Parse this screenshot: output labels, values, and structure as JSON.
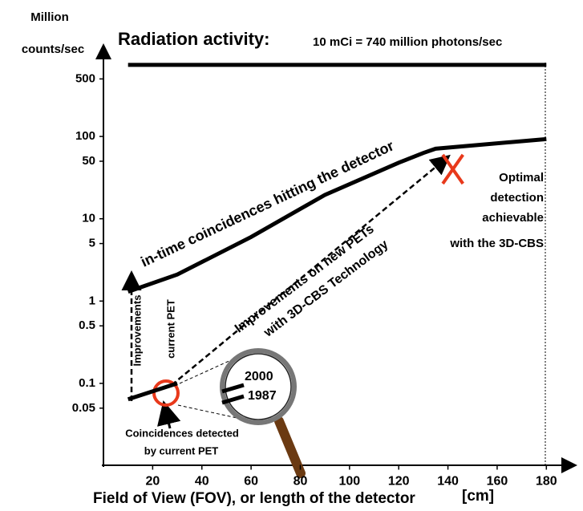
{
  "chart_data": {
    "type": "line",
    "title": "Radiation activity:",
    "subtitle": "10 mCi = 740 million photons/sec",
    "y_label": [
      "Million",
      "counts/sec"
    ],
    "x_label": "Field of View (FOV), or length of the detector",
    "x_unit": "[cm]",
    "xlim": [
      0,
      190
    ],
    "ylim": [
      0.01,
      1000
    ],
    "log_y": true,
    "xticks": [
      20,
      40,
      60,
      80,
      100,
      120,
      140,
      160,
      180
    ],
    "yticks": [
      0.05,
      0.1,
      0.5,
      1,
      5,
      10,
      50,
      100,
      500
    ],
    "series": [
      {
        "color": "#000000",
        "x": [
          10,
          180
        ],
        "values": [
          740,
          740
        ]
      },
      {
        "color": "#000000",
        "label": "in-time coincidences hitting the detector",
        "x": [
          10,
          30,
          60,
          90,
          120,
          130,
          135,
          180
        ],
        "values": [
          1.3,
          2.1,
          6,
          19.5,
          48,
          63,
          71,
          93
        ]
      },
      {
        "color": "#000000",
        "x": [
          10,
          30
        ],
        "values": [
          0.064,
          0.1
        ]
      },
      {
        "type": "marker",
        "color": "#e8391b",
        "x": [
          142
        ],
        "values": [
          40
        ],
        "label": [
          "Optimal",
          "detection",
          "achievable",
          "with the 3D-CBS"
        ]
      }
    ],
    "annotations": [
      "Improvements",
      "current PET",
      "Improvements on new PETs",
      "with 3D-CBS Technology",
      "Coincidences detected",
      "by current PET"
    ],
    "magnifier_labels": [
      "2000",
      "1987"
    ]
  }
}
